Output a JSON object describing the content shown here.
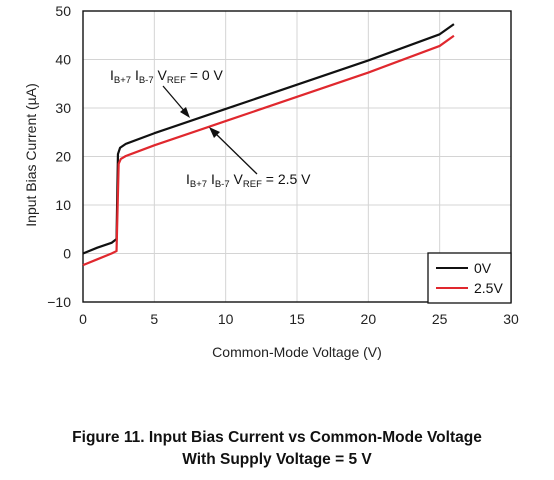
{
  "chart_data": {
    "type": "line",
    "xlabel": "Common-Mode Voltage (V)",
    "ylabel": "Input Bias Current (µA)",
    "xlim": [
      0,
      30
    ],
    "ylim": [
      -10,
      50
    ],
    "xticks": [
      0,
      5,
      10,
      15,
      20,
      25,
      30
    ],
    "yticks": [
      -10,
      0,
      10,
      20,
      30,
      40,
      50
    ],
    "grid": true,
    "legend_position": "bottom-right",
    "series": [
      {
        "name": "0V",
        "color": "#111111",
        "x": [
          0,
          1,
          2,
          2.35,
          2.45,
          2.6,
          3,
          5,
          10,
          15,
          20,
          25,
          26
        ],
        "y": [
          0,
          1.2,
          2.2,
          3,
          20.5,
          21.8,
          22.6,
          24.8,
          29.8,
          34.8,
          39.8,
          45.2,
          47.3
        ]
      },
      {
        "name": "2.5V",
        "color": "#e0282e",
        "x": [
          0,
          1,
          2,
          2.35,
          2.5,
          2.65,
          3,
          5,
          10,
          15,
          20,
          25,
          26
        ],
        "y": [
          -2.4,
          -1.2,
          0,
          0.5,
          18.5,
          19.5,
          20.1,
          22.3,
          27.3,
          32.3,
          37.3,
          42.8,
          44.9
        ]
      }
    ],
    "annotations": [
      {
        "base": "I",
        "sub1": "B+7",
        "mid": " I",
        "sub2": "B-7",
        "mid2": " V",
        "sub3": "REF",
        "tail": " = 0 V"
      },
      {
        "base": "I",
        "sub1": "B+7",
        "mid": " I",
        "sub2": "B-7",
        "mid2": " V",
        "sub3": "REF",
        "tail": " = 2.5 V"
      }
    ]
  },
  "caption": {
    "line1": "Figure 11. Input Bias Current vs Common-Mode Voltage",
    "line2": "With Supply Voltage = 5 V"
  }
}
